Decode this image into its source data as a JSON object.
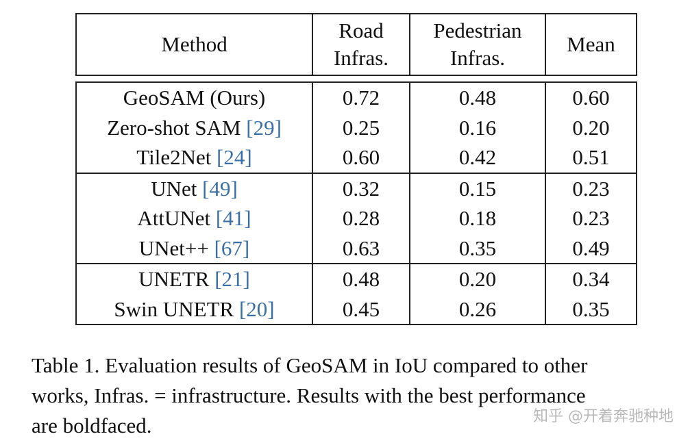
{
  "table": {
    "headers": {
      "method": "Method",
      "road_line1": "Road",
      "road_line2": "Infras.",
      "ped_line1": "Pedestrian",
      "ped_line2": "Infras.",
      "mean": "Mean"
    },
    "groups": [
      {
        "rows": [
          {
            "method": "GeoSAM (Ours)",
            "ref": "",
            "road": "0.72",
            "ped": "0.48",
            "mean": "0.60",
            "bold": true
          },
          {
            "method": "Zero-shot SAM ",
            "ref": "[29]",
            "road": "0.25",
            "ped": "0.16",
            "mean": "0.20",
            "bold": false
          },
          {
            "method": "Tile2Net ",
            "ref": "[24]",
            "road": "0.60",
            "ped": "0.42",
            "mean": "0.51",
            "bold": false
          }
        ]
      },
      {
        "rows": [
          {
            "method": "UNet ",
            "ref": "[49]",
            "road": "0.32",
            "ped": "0.15",
            "mean": "0.23",
            "bold": false
          },
          {
            "method": "AttUNet ",
            "ref": "[41]",
            "road": "0.28",
            "ped": "0.18",
            "mean": "0.23",
            "bold": false
          },
          {
            "method": "UNet++ ",
            "ref": "[67]",
            "road": "0.63",
            "ped": "0.35",
            "mean": "0.49",
            "bold": false
          }
        ]
      },
      {
        "rows": [
          {
            "method": "UNETR ",
            "ref": "[21]",
            "road": "0.48",
            "ped": "0.20",
            "mean": "0.34",
            "bold": false
          },
          {
            "method": "Swin UNETR ",
            "ref": "[20]",
            "road": "0.45",
            "ped": "0.26",
            "mean": "0.35",
            "bold": false
          }
        ]
      }
    ]
  },
  "caption": {
    "line1": "Table 1. Evaluation results of GeoSAM in IoU compared to other",
    "line2": "works, Infras. = infrastructure. Results with the best performance",
    "line3": "are boldfaced."
  },
  "watermark": "知乎 @开着奔驰种地",
  "colors": {
    "reference_link": "#3a6fa5",
    "text": "#111111",
    "watermark": "#b9b9b9"
  }
}
